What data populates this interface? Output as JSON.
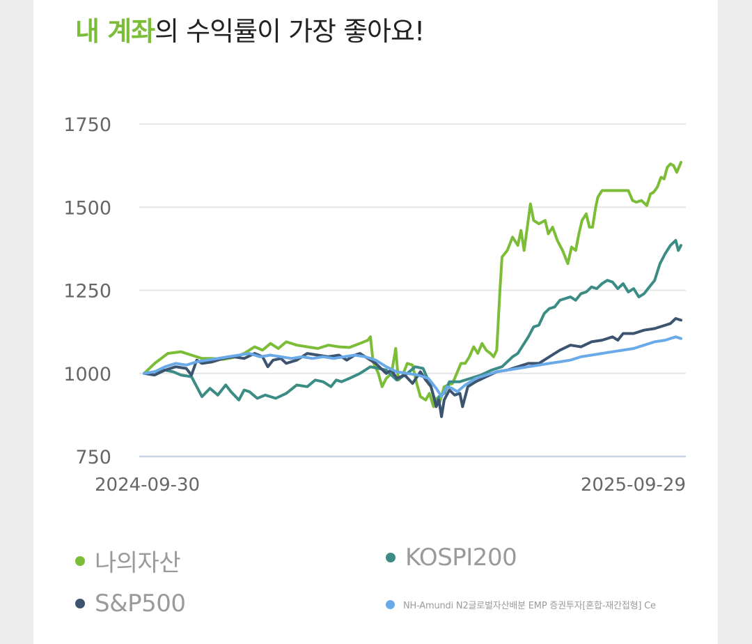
{
  "header": {
    "title_highlight": "내 계좌",
    "title_rest": "의 수익률이 가장 좋아요!",
    "highlight_color": "#7cbd38"
  },
  "chart_data": {
    "type": "line",
    "title": "",
    "xlabel": "",
    "ylabel": "",
    "ylim": [
      750,
      1750
    ],
    "yticks": [
      750,
      1000,
      1250,
      1500,
      1750
    ],
    "x_tick_labels": [
      "2024-09-30",
      "2025-09-29"
    ],
    "grid": true,
    "legend_position": "bottom",
    "series": [
      {
        "name": "나의자산",
        "color": "#7cbd38",
        "points": [
          [
            0.0,
            1000
          ],
          [
            0.02,
            1030
          ],
          [
            0.045,
            1060
          ],
          [
            0.07,
            1065
          ],
          [
            0.09,
            1055
          ],
          [
            0.11,
            1045
          ],
          [
            0.13,
            1045
          ],
          [
            0.15,
            1042
          ],
          [
            0.17,
            1048
          ],
          [
            0.19,
            1060
          ],
          [
            0.21,
            1080
          ],
          [
            0.225,
            1070
          ],
          [
            0.24,
            1090
          ],
          [
            0.255,
            1075
          ],
          [
            0.27,
            1095
          ],
          [
            0.29,
            1085
          ],
          [
            0.31,
            1080
          ],
          [
            0.33,
            1075
          ],
          [
            0.35,
            1085
          ],
          [
            0.37,
            1080
          ],
          [
            0.39,
            1078
          ],
          [
            0.41,
            1090
          ],
          [
            0.425,
            1100
          ],
          [
            0.43,
            1110
          ],
          [
            0.435,
            1035
          ],
          [
            0.445,
            1000
          ],
          [
            0.452,
            960
          ],
          [
            0.46,
            985
          ],
          [
            0.47,
            1000
          ],
          [
            0.478,
            1075
          ],
          [
            0.483,
            980
          ],
          [
            0.49,
            990
          ],
          [
            0.5,
            1030
          ],
          [
            0.51,
            1025
          ],
          [
            0.518,
            970
          ],
          [
            0.525,
            930
          ],
          [
            0.535,
            920
          ],
          [
            0.542,
            940
          ],
          [
            0.55,
            900
          ],
          [
            0.556,
            925
          ],
          [
            0.562,
            915
          ],
          [
            0.57,
            960
          ],
          [
            0.578,
            965
          ],
          [
            0.586,
            970
          ],
          [
            0.594,
            1000
          ],
          [
            0.602,
            1030
          ],
          [
            0.61,
            1030
          ],
          [
            0.618,
            1050
          ],
          [
            0.626,
            1080
          ],
          [
            0.634,
            1060
          ],
          [
            0.642,
            1090
          ],
          [
            0.65,
            1070
          ],
          [
            0.658,
            1060
          ],
          [
            0.664,
            1050
          ],
          [
            0.67,
            1070
          ],
          [
            0.676,
            1250
          ],
          [
            0.68,
            1350
          ],
          [
            0.69,
            1370
          ],
          [
            0.7,
            1410
          ],
          [
            0.71,
            1385
          ],
          [
            0.716,
            1430
          ],
          [
            0.722,
            1370
          ],
          [
            0.728,
            1440
          ],
          [
            0.734,
            1510
          ],
          [
            0.74,
            1460
          ],
          [
            0.75,
            1450
          ],
          [
            0.762,
            1460
          ],
          [
            0.768,
            1420
          ],
          [
            0.776,
            1440
          ],
          [
            0.785,
            1400
          ],
          [
            0.795,
            1370
          ],
          [
            0.805,
            1330
          ],
          [
            0.812,
            1380
          ],
          [
            0.82,
            1370
          ],
          [
            0.826,
            1420
          ],
          [
            0.832,
            1460
          ],
          [
            0.84,
            1480
          ],
          [
            0.846,
            1440
          ],
          [
            0.852,
            1440
          ],
          [
            0.858,
            1500
          ],
          [
            0.862,
            1530
          ],
          [
            0.87,
            1550
          ],
          [
            0.88,
            1550
          ],
          [
            0.9,
            1550
          ],
          [
            0.92,
            1550
          ],
          [
            0.928,
            1520
          ],
          [
            0.935,
            1515
          ],
          [
            0.945,
            1520
          ],
          [
            0.955,
            1505
          ],
          [
            0.962,
            1540
          ],
          [
            0.968,
            1545
          ],
          [
            0.975,
            1560
          ],
          [
            0.982,
            1590
          ],
          [
            0.988,
            1585
          ],
          [
            0.994,
            1620
          ],
          [
            1.0,
            1630
          ],
          [
            1.006,
            1625
          ],
          [
            1.012,
            1605
          ],
          [
            1.02,
            1635
          ]
        ]
      },
      {
        "name": "KOSPI200",
        "color": "#3a8c84",
        "points": [
          [
            0.0,
            1000
          ],
          [
            0.02,
            1005
          ],
          [
            0.04,
            1010
          ],
          [
            0.055,
            1005
          ],
          [
            0.07,
            995
          ],
          [
            0.09,
            990
          ],
          [
            0.1,
            960
          ],
          [
            0.11,
            930
          ],
          [
            0.125,
            955
          ],
          [
            0.14,
            935
          ],
          [
            0.155,
            965
          ],
          [
            0.165,
            945
          ],
          [
            0.18,
            920
          ],
          [
            0.19,
            950
          ],
          [
            0.2,
            945
          ],
          [
            0.215,
            925
          ],
          [
            0.23,
            935
          ],
          [
            0.25,
            925
          ],
          [
            0.27,
            940
          ],
          [
            0.29,
            965
          ],
          [
            0.31,
            960
          ],
          [
            0.325,
            980
          ],
          [
            0.34,
            975
          ],
          [
            0.355,
            960
          ],
          [
            0.365,
            980
          ],
          [
            0.375,
            975
          ],
          [
            0.39,
            985
          ],
          [
            0.41,
            1000
          ],
          [
            0.43,
            1020
          ],
          [
            0.445,
            1015
          ],
          [
            0.46,
            1010
          ],
          [
            0.48,
            980
          ],
          [
            0.5,
            1000
          ],
          [
            0.515,
            1020
          ],
          [
            0.53,
            1015
          ],
          [
            0.545,
            960
          ],
          [
            0.555,
            905
          ],
          [
            0.56,
            930
          ],
          [
            0.57,
            940
          ],
          [
            0.58,
            975
          ],
          [
            0.6,
            975
          ],
          [
            0.62,
            985
          ],
          [
            0.64,
            995
          ],
          [
            0.66,
            1010
          ],
          [
            0.68,
            1020
          ],
          [
            0.7,
            1050
          ],
          [
            0.71,
            1060
          ],
          [
            0.72,
            1085
          ],
          [
            0.73,
            1110
          ],
          [
            0.74,
            1140
          ],
          [
            0.75,
            1145
          ],
          [
            0.76,
            1180
          ],
          [
            0.77,
            1195
          ],
          [
            0.78,
            1200
          ],
          [
            0.79,
            1220
          ],
          [
            0.8,
            1225
          ],
          [
            0.81,
            1230
          ],
          [
            0.82,
            1220
          ],
          [
            0.83,
            1240
          ],
          [
            0.84,
            1245
          ],
          [
            0.85,
            1260
          ],
          [
            0.86,
            1255
          ],
          [
            0.87,
            1270
          ],
          [
            0.88,
            1280
          ],
          [
            0.89,
            1275
          ],
          [
            0.9,
            1255
          ],
          [
            0.91,
            1270
          ],
          [
            0.92,
            1245
          ],
          [
            0.93,
            1255
          ],
          [
            0.94,
            1230
          ],
          [
            0.95,
            1240
          ],
          [
            0.96,
            1260
          ],
          [
            0.97,
            1280
          ],
          [
            0.98,
            1330
          ],
          [
            0.99,
            1360
          ],
          [
            1.0,
            1385
          ],
          [
            1.01,
            1400
          ],
          [
            1.015,
            1370
          ],
          [
            1.02,
            1385
          ]
        ]
      },
      {
        "name": "S&P500",
        "color": "#3c5470",
        "points": [
          [
            0.0,
            1000
          ],
          [
            0.02,
            995
          ],
          [
            0.04,
            1010
          ],
          [
            0.06,
            1020
          ],
          [
            0.08,
            1015
          ],
          [
            0.09,
            995
          ],
          [
            0.1,
            1040
          ],
          [
            0.11,
            1030
          ],
          [
            0.13,
            1035
          ],
          [
            0.15,
            1045
          ],
          [
            0.17,
            1050
          ],
          [
            0.19,
            1045
          ],
          [
            0.21,
            1060
          ],
          [
            0.225,
            1050
          ],
          [
            0.235,
            1020
          ],
          [
            0.245,
            1040
          ],
          [
            0.26,
            1045
          ],
          [
            0.27,
            1030
          ],
          [
            0.29,
            1040
          ],
          [
            0.31,
            1060
          ],
          [
            0.33,
            1055
          ],
          [
            0.35,
            1050
          ],
          [
            0.37,
            1055
          ],
          [
            0.385,
            1040
          ],
          [
            0.4,
            1055
          ],
          [
            0.41,
            1060
          ],
          [
            0.42,
            1050
          ],
          [
            0.44,
            1030
          ],
          [
            0.46,
            1000
          ],
          [
            0.47,
            1010
          ],
          [
            0.48,
            985
          ],
          [
            0.495,
            995
          ],
          [
            0.51,
            970
          ],
          [
            0.525,
            1005
          ],
          [
            0.535,
            980
          ],
          [
            0.545,
            960
          ],
          [
            0.555,
            900
          ],
          [
            0.56,
            920
          ],
          [
            0.565,
            870
          ],
          [
            0.57,
            920
          ],
          [
            0.58,
            950
          ],
          [
            0.59,
            935
          ],
          [
            0.6,
            940
          ],
          [
            0.605,
            900
          ],
          [
            0.615,
            960
          ],
          [
            0.63,
            975
          ],
          [
            0.65,
            990
          ],
          [
            0.67,
            1005
          ],
          [
            0.69,
            1010
          ],
          [
            0.71,
            1020
          ],
          [
            0.73,
            1030
          ],
          [
            0.75,
            1030
          ],
          [
            0.77,
            1050
          ],
          [
            0.79,
            1070
          ],
          [
            0.81,
            1085
          ],
          [
            0.83,
            1080
          ],
          [
            0.85,
            1095
          ],
          [
            0.87,
            1100
          ],
          [
            0.89,
            1110
          ],
          [
            0.9,
            1100
          ],
          [
            0.91,
            1120
          ],
          [
            0.93,
            1120
          ],
          [
            0.95,
            1130
          ],
          [
            0.97,
            1135
          ],
          [
            0.99,
            1145
          ],
          [
            1.0,
            1150
          ],
          [
            1.01,
            1165
          ],
          [
            1.02,
            1160
          ]
        ]
      },
      {
        "name": "NH-Amundi N2글로벌자산배분 EMP 증권투자[혼합-재간접형] Ce",
        "color": "#6aaae8",
        "points": [
          [
            0.0,
            1000
          ],
          [
            0.02,
            1005
          ],
          [
            0.04,
            1020
          ],
          [
            0.06,
            1030
          ],
          [
            0.08,
            1025
          ],
          [
            0.1,
            1035
          ],
          [
            0.12,
            1040
          ],
          [
            0.14,
            1045
          ],
          [
            0.16,
            1050
          ],
          [
            0.18,
            1055
          ],
          [
            0.2,
            1060
          ],
          [
            0.22,
            1050
          ],
          [
            0.24,
            1055
          ],
          [
            0.26,
            1050
          ],
          [
            0.28,
            1045
          ],
          [
            0.3,
            1050
          ],
          [
            0.32,
            1045
          ],
          [
            0.34,
            1050
          ],
          [
            0.36,
            1045
          ],
          [
            0.38,
            1050
          ],
          [
            0.4,
            1055
          ],
          [
            0.42,
            1050
          ],
          [
            0.44,
            1040
          ],
          [
            0.46,
            1020
          ],
          [
            0.48,
            1005
          ],
          [
            0.5,
            1000
          ],
          [
            0.52,
            995
          ],
          [
            0.54,
            985
          ],
          [
            0.555,
            955
          ],
          [
            0.565,
            930
          ],
          [
            0.575,
            960
          ],
          [
            0.585,
            955
          ],
          [
            0.595,
            945
          ],
          [
            0.61,
            965
          ],
          [
            0.63,
            985
          ],
          [
            0.65,
            995
          ],
          [
            0.67,
            1005
          ],
          [
            0.69,
            1010
          ],
          [
            0.71,
            1015
          ],
          [
            0.73,
            1020
          ],
          [
            0.75,
            1025
          ],
          [
            0.77,
            1030
          ],
          [
            0.79,
            1035
          ],
          [
            0.81,
            1040
          ],
          [
            0.83,
            1050
          ],
          [
            0.85,
            1055
          ],
          [
            0.87,
            1060
          ],
          [
            0.89,
            1065
          ],
          [
            0.91,
            1070
          ],
          [
            0.93,
            1075
          ],
          [
            0.95,
            1085
          ],
          [
            0.97,
            1095
          ],
          [
            0.99,
            1100
          ],
          [
            1.0,
            1105
          ],
          [
            1.01,
            1110
          ],
          [
            1.02,
            1105
          ]
        ]
      }
    ]
  }
}
